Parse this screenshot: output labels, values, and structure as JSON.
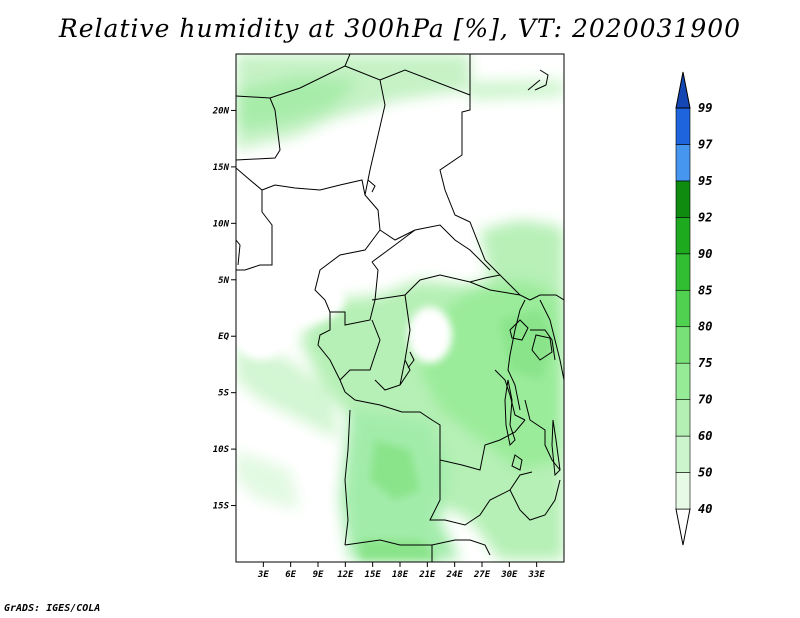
{
  "title": "Relative humidity at 300hPa [%], VT: 2020031900",
  "footer": "GrADS: IGES/COLA",
  "map": {
    "lon_ticks": [
      "3E",
      "6E",
      "9E",
      "12E",
      "15E",
      "18E",
      "21E",
      "24E",
      "27E",
      "30E",
      "33E"
    ],
    "lat_ticks": [
      "20N",
      "15N",
      "10N",
      "5N",
      "EQ",
      "5S",
      "10S",
      "15S"
    ]
  },
  "colorbar": {
    "levels": [
      "40",
      "50",
      "60",
      "70",
      "75",
      "80",
      "85",
      "90",
      "92",
      "95",
      "97",
      "99"
    ],
    "colors": [
      "#ffffff",
      "#e6fae6",
      "#cdf5cd",
      "#b4f0b4",
      "#96eb96",
      "#78e178",
      "#50d250",
      "#32be32",
      "#1eaa1e",
      "#0f8c0f",
      "#4696f0",
      "#1e64dc",
      "#1446b4"
    ]
  },
  "chart_data": {
    "type": "heatmap",
    "title": "Relative humidity at 300hPa [%], VT: 2020031900",
    "units": "%",
    "xlabel": "",
    "ylabel": "",
    "lon_range": [
      0,
      36
    ],
    "lat_range": [
      -20,
      25
    ],
    "x_ticks": [
      "3E",
      "6E",
      "9E",
      "12E",
      "15E",
      "18E",
      "21E",
      "24E",
      "27E",
      "30E",
      "33E"
    ],
    "y_ticks": [
      "20N",
      "15N",
      "10N",
      "5N",
      "EQ",
      "5S",
      "10S",
      "15S"
    ],
    "contour_levels": [
      40,
      50,
      60,
      70,
      75,
      80,
      85,
      90,
      92,
      95,
      97,
      99
    ],
    "legend_placement": "right",
    "grid": false
  }
}
